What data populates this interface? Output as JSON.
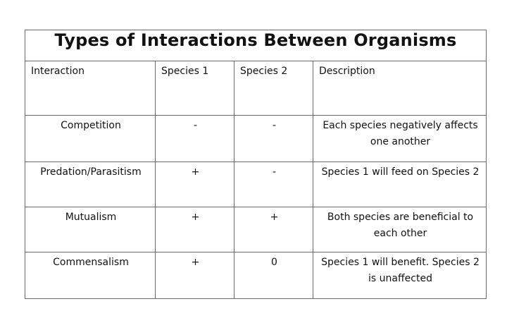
{
  "title": "Types of Interactions Between Organisms",
  "headers": [
    "Interaction",
    "Species 1",
    "Species 2",
    "Description"
  ],
  "rows": [
    {
      "interaction": "Competition",
      "species1": "-",
      "species2": "-",
      "description": "Each species negatively affects one another"
    },
    {
      "interaction": "Predation/Parasitism",
      "species1": "+",
      "species2": "-",
      "description": "Species 1 will feed on Species 2"
    },
    {
      "interaction": "Mutualism",
      "species1": "+",
      "species2": "+",
      "description": "Both species are beneficial to each other"
    },
    {
      "interaction": "Commensalism",
      "species1": "+",
      "species2": "0",
      "description": "Species 1 will benefit. Species 2 is unaffected"
    }
  ]
}
